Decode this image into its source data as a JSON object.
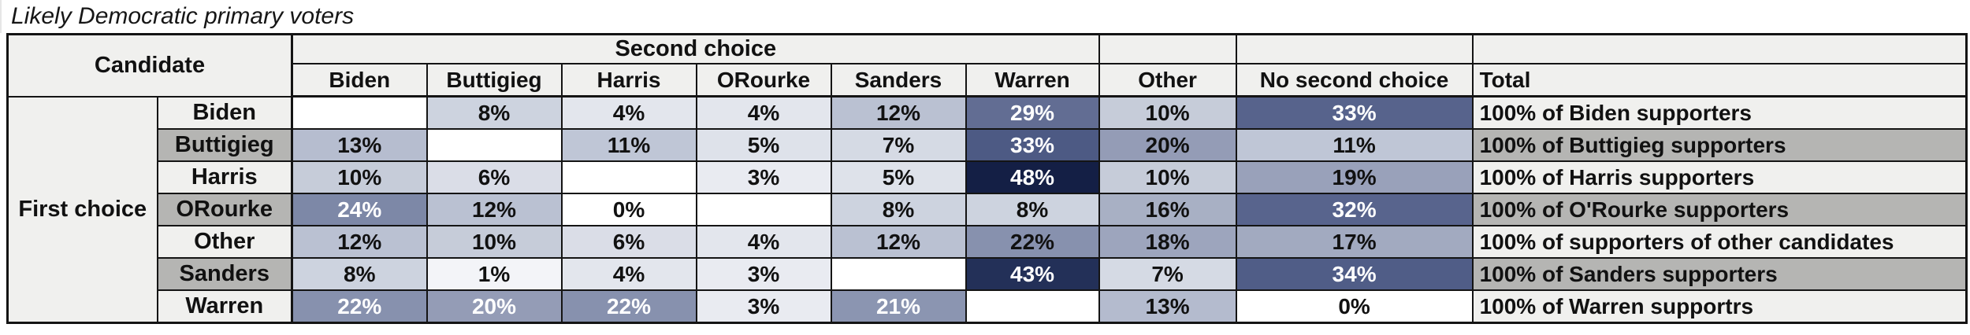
{
  "title": "Likely Democratic primary voters",
  "table": {
    "corner_header": "Candidate",
    "group_header": "Second choice",
    "row_axis_label": "First choice",
    "columns": [
      "Biden",
      "Buttigieg",
      "Harris",
      "ORourke",
      "Sanders",
      "Warren",
      "Other",
      "No second choice",
      "Total"
    ],
    "rows": [
      {
        "label": "Biden",
        "label_bg": "#f0f0ee",
        "total": "100% of Biden supporters",
        "total_bg": "#f0f0ee",
        "cells": [
          {
            "v": "",
            "bg": "#ffffff"
          },
          {
            "v": "8%",
            "bg": "#cdd3df"
          },
          {
            "v": "4%",
            "bg": "#e3e6ed"
          },
          {
            "v": "4%",
            "bg": "#e3e6ed"
          },
          {
            "v": "12%",
            "bg": "#bac1d2"
          },
          {
            "v": "29%",
            "bg": "#626d93",
            "fg": "#ffffff"
          },
          {
            "v": "10%",
            "bg": "#c6ccd9"
          },
          {
            "v": "33%",
            "bg": "#57638c",
            "fg": "#ffffff"
          }
        ]
      },
      {
        "label": "Buttigieg",
        "label_bg": "#b5b5b3",
        "total": "100% of Buttigieg supporters",
        "total_bg": "#b5b5b3",
        "cells": [
          {
            "v": "13%",
            "bg": "#b6bdcf"
          },
          {
            "v": "",
            "bg": "#ffffff"
          },
          {
            "v": "11%",
            "bg": "#bfc6d6"
          },
          {
            "v": "5%",
            "bg": "#dee2ea"
          },
          {
            "v": "7%",
            "bg": "#d5dae4"
          },
          {
            "v": "33%",
            "bg": "#4d5a84",
            "fg": "#ffffff"
          },
          {
            "v": "20%",
            "bg": "#949cb6"
          },
          {
            "v": "11%",
            "bg": "#bfc6d6"
          }
        ]
      },
      {
        "label": "Harris",
        "label_bg": "#f0f0ee",
        "total": "100% of Harris supporters",
        "total_bg": "#f0f0ee",
        "cells": [
          {
            "v": "10%",
            "bg": "#c6ccd9"
          },
          {
            "v": "6%",
            "bg": "#dadde7"
          },
          {
            "v": "",
            "bg": "#ffffff"
          },
          {
            "v": "3%",
            "bg": "#e9ebf1"
          },
          {
            "v": "5%",
            "bg": "#dee2ea"
          },
          {
            "v": "48%",
            "bg": "#141f45",
            "fg": "#ffffff"
          },
          {
            "v": "10%",
            "bg": "#c6ccd9"
          },
          {
            "v": "19%",
            "bg": "#99a1ba"
          }
        ]
      },
      {
        "label": "ORourke",
        "label_bg": "#b5b5b3",
        "total": "100% of O'Rourke supporters",
        "total_bg": "#b5b5b3",
        "cells": [
          {
            "v": "24%",
            "bg": "#7d88a7",
            "fg": "#ffffff"
          },
          {
            "v": "12%",
            "bg": "#bac1d2"
          },
          {
            "v": "0%",
            "bg": "#ffffff"
          },
          {
            "v": "",
            "bg": "#ffffff"
          },
          {
            "v": "8%",
            "bg": "#cdd3df"
          },
          {
            "v": "8%",
            "bg": "#cdd3df"
          },
          {
            "v": "16%",
            "bg": "#a8b0c4"
          },
          {
            "v": "32%",
            "bg": "#58648d",
            "fg": "#ffffff"
          }
        ]
      },
      {
        "label": "Other",
        "label_bg": "#f0f0ee",
        "total": "100% of supporters of other candidates",
        "total_bg": "#f0f0ee",
        "cells": [
          {
            "v": "12%",
            "bg": "#bac1d2"
          },
          {
            "v": "10%",
            "bg": "#c6ccd9"
          },
          {
            "v": "6%",
            "bg": "#dadde7"
          },
          {
            "v": "4%",
            "bg": "#e3e6ed"
          },
          {
            "v": "12%",
            "bg": "#bac1d2"
          },
          {
            "v": "22%",
            "bg": "#8791ae"
          },
          {
            "v": "18%",
            "bg": "#9da5bd"
          },
          {
            "v": "17%",
            "bg": "#a2aac0"
          }
        ]
      },
      {
        "label": "Sanders",
        "label_bg": "#b5b5b3",
        "total": "100% of Sanders supporters",
        "total_bg": "#b5b5b3",
        "cells": [
          {
            "v": "8%",
            "bg": "#cdd3df"
          },
          {
            "v": "1%",
            "bg": "#f3f4f8"
          },
          {
            "v": "4%",
            "bg": "#e3e6ed"
          },
          {
            "v": "3%",
            "bg": "#e9ebf1"
          },
          {
            "v": "",
            "bg": "#ffffff"
          },
          {
            "v": "43%",
            "bg": "#233058",
            "fg": "#ffffff"
          },
          {
            "v": "7%",
            "bg": "#d5dae4"
          },
          {
            "v": "34%",
            "bg": "#505d87",
            "fg": "#ffffff"
          }
        ]
      },
      {
        "label": "Warren",
        "label_bg": "#f0f0ee",
        "total": "100% of Warren supportrs",
        "total_bg": "#f0f0ee",
        "cells": [
          {
            "v": "22%",
            "bg": "#8791ae",
            "fg": "#ffffff"
          },
          {
            "v": "20%",
            "bg": "#949cb6",
            "fg": "#ffffff"
          },
          {
            "v": "22%",
            "bg": "#8791ae",
            "fg": "#ffffff"
          },
          {
            "v": "3%",
            "bg": "#e9ebf1"
          },
          {
            "v": "21%",
            "bg": "#8b95b1",
            "fg": "#ffffff"
          },
          {
            "v": "",
            "bg": "#ffffff"
          },
          {
            "v": "13%",
            "bg": "#b4bbce"
          },
          {
            "v": "0%",
            "bg": "#ffffff"
          }
        ]
      }
    ]
  },
  "chart_data": {
    "type": "heatmap",
    "title": "Likely Democratic primary voters",
    "row_axis": "First choice",
    "col_axis": "Second choice",
    "rows": [
      "Biden",
      "Buttigieg",
      "Harris",
      "ORourke",
      "Other",
      "Sanders",
      "Warren"
    ],
    "columns": [
      "Biden",
      "Buttigieg",
      "Harris",
      "ORourke",
      "Sanders",
      "Warren",
      "Other",
      "No second choice"
    ],
    "values_pct": [
      [
        null,
        8,
        4,
        4,
        12,
        29,
        10,
        33
      ],
      [
        13,
        null,
        11,
        5,
        7,
        33,
        20,
        11
      ],
      [
        10,
        6,
        null,
        3,
        5,
        48,
        10,
        19
      ],
      [
        24,
        12,
        0,
        null,
        8,
        8,
        16,
        32
      ],
      [
        12,
        10,
        6,
        4,
        12,
        22,
        18,
        17
      ],
      [
        8,
        1,
        4,
        3,
        null,
        43,
        7,
        34
      ],
      [
        22,
        20,
        22,
        3,
        21,
        null,
        13,
        0
      ]
    ],
    "row_totals": [
      "100% of Biden supporters",
      "100% of Buttigieg supporters",
      "100% of Harris supporters",
      "100% of O'Rourke supporters",
      "100% of supporters of other candidates",
      "100% of Sanders supporters",
      "100% of Warren supportrs"
    ],
    "colorscale": {
      "min_color": "#ffffff",
      "max_color": "#141f45",
      "min_value": 0,
      "max_value": 48
    }
  },
  "colors": {
    "header_bg": "#f0f0ee",
    "alt_row_gray": "#b5b5b3",
    "border": "#141414",
    "dark_cell": "#141f45"
  }
}
